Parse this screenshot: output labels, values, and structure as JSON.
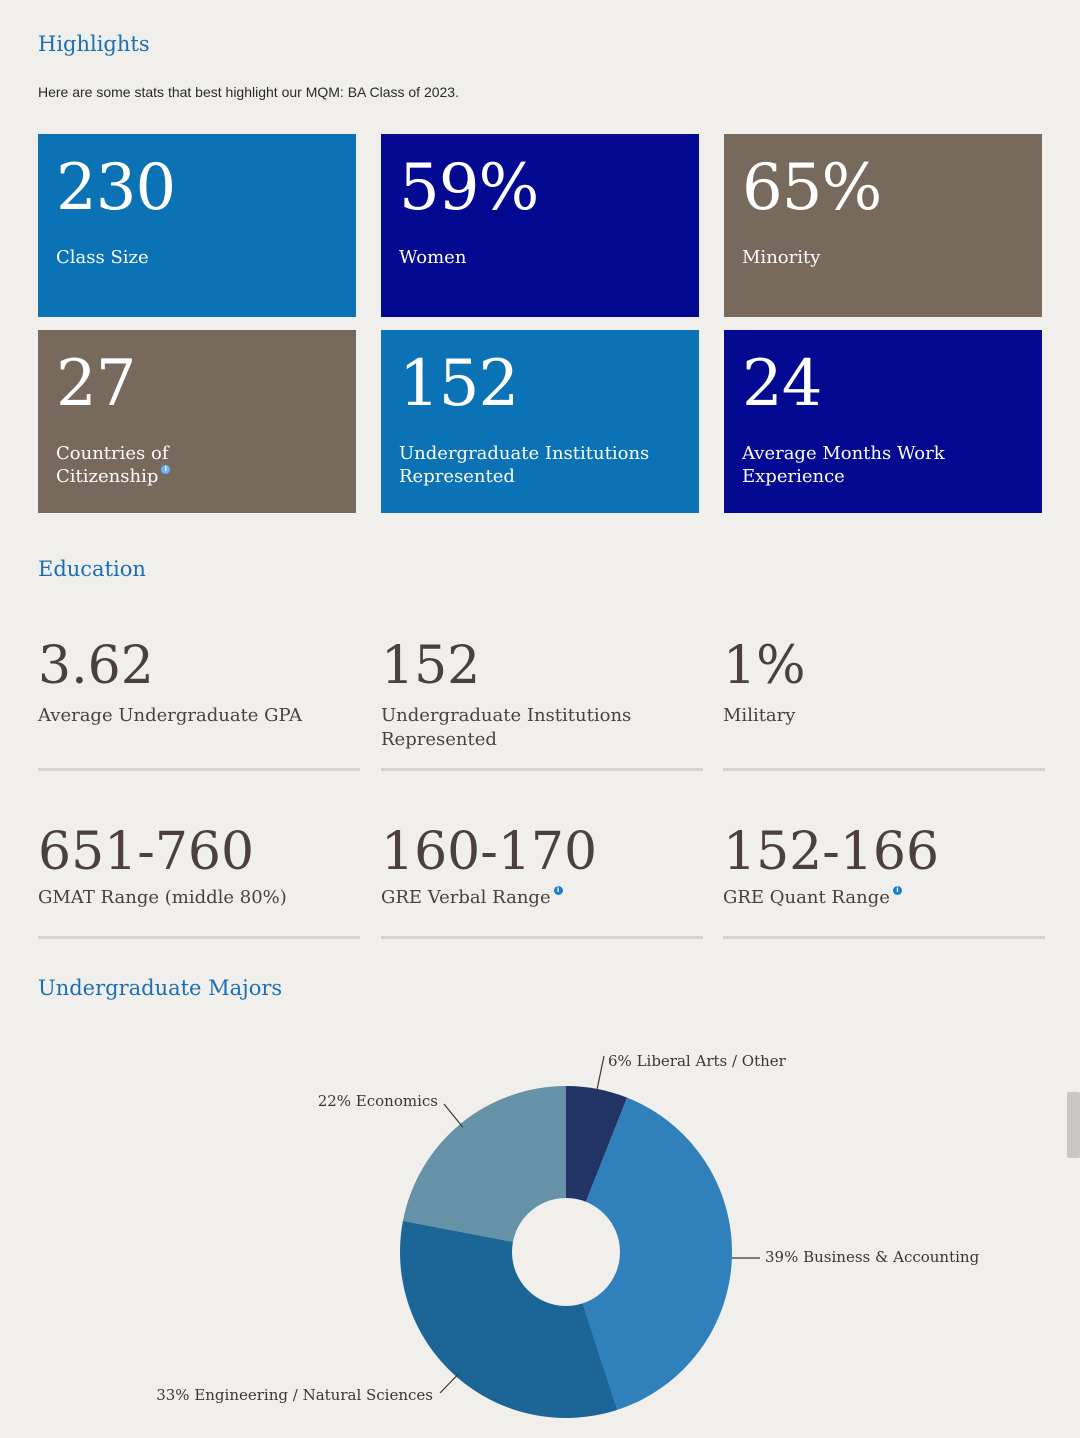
{
  "highlights": {
    "title": "Highlights",
    "intro": "Here are some stats that best highlight our MQM: BA Class of 2023."
  },
  "tiles": [
    {
      "value": "230",
      "label": "Class Size",
      "color": "#0b72b5"
    },
    {
      "value": "59%",
      "label": "Women",
      "color": "#030a91"
    },
    {
      "value": "65%",
      "label": "Minority",
      "color": "#77695c"
    },
    {
      "value": "27",
      "label": "Countries of Citizenship",
      "color": "#77695c",
      "info": true
    },
    {
      "value": "152",
      "label": "Undergraduate Institutions Represented",
      "color": "#0b72b5"
    },
    {
      "value": "24",
      "label": "Average Months Work Experience",
      "color": "#030a91"
    }
  ],
  "education": {
    "title": "Education",
    "stats": [
      {
        "value": "3.62",
        "label": "Average Undergraduate GPA"
      },
      {
        "value": "152",
        "label": "Undergraduate Institutions Represented"
      },
      {
        "value": "1%",
        "label": "Military"
      },
      {
        "value": "651-760",
        "label": "GMAT Range (middle 80%)"
      },
      {
        "value": "160-170",
        "label": "GRE Verbal Range",
        "info": true
      },
      {
        "value": "152-166",
        "label": "GRE Quant Range",
        "info": true
      }
    ]
  },
  "majors": {
    "title": "Undergraduate Majors"
  },
  "chart_data": {
    "type": "pie",
    "donut": true,
    "categories": [
      "Liberal Arts / Other",
      "Business & Accounting",
      "Engineering / Natural Sciences",
      "Economics"
    ],
    "values": [
      6,
      39,
      33,
      22
    ],
    "labels": [
      "6% Liberal Arts / Other",
      "39% Business & Accounting",
      "33% Engineering / Natural Sciences",
      "22% Economics"
    ],
    "colors": [
      "#223466",
      "#2f80bb",
      "#1b6597",
      "#6592a6"
    ]
  }
}
